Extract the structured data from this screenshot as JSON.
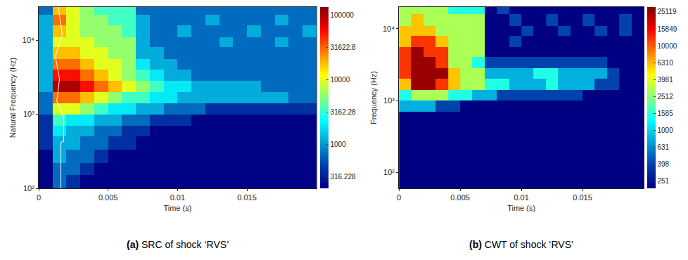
{
  "chart_data": [
    {
      "type": "heatmap",
      "caption": "(a) SRC of shock ‘RVS’",
      "x_label": "Time (s)",
      "y_label": "Natural Frequency (Hz)",
      "log": "y",
      "color": "jet",
      "xlim": [
        0,
        0.02
      ],
      "xticks": [
        0,
        0.005,
        0.01,
        0.015
      ],
      "ylim": [
        100,
        28000
      ],
      "yticks": [
        {
          "value": 100,
          "label": "10²"
        },
        {
          "value": 1000,
          "label": "10³"
        },
        {
          "value": 10000,
          "label": "10⁴"
        }
      ],
      "x_edges": [
        0,
        0.001,
        0.002,
        0.003,
        0.004,
        0.005,
        0.006,
        0.007,
        0.008,
        0.009,
        0.01,
        0.011,
        0.012,
        0.013,
        0.014,
        0.015,
        0.016,
        0.017,
        0.018,
        0.019,
        0.02
      ],
      "y_edges": [
        100,
        150,
        220,
        330,
        500,
        700,
        1000,
        1400,
        2000,
        2800,
        4000,
        5600,
        8000,
        11000,
        16000,
        22000,
        28000
      ],
      "cells": [
        [
          220,
          700,
          400,
          220,
          220,
          220,
          220,
          220,
          220,
          220,
          220,
          220,
          220,
          220,
          220,
          220,
          220,
          220,
          220,
          220
        ],
        [
          220,
          700,
          700,
          400,
          220,
          220,
          220,
          220,
          220,
          220,
          220,
          220,
          220,
          220,
          220,
          220,
          220,
          220,
          220,
          220
        ],
        [
          220,
          1200,
          700,
          700,
          400,
          220,
          220,
          220,
          220,
          220,
          220,
          220,
          220,
          220,
          220,
          220,
          220,
          220,
          220,
          220
        ],
        [
          400,
          1200,
          1200,
          700,
          700,
          400,
          400,
          220,
          220,
          220,
          220,
          220,
          220,
          220,
          220,
          220,
          220,
          220,
          220,
          220
        ],
        [
          400,
          2000,
          1200,
          1200,
          700,
          700,
          400,
          400,
          220,
          220,
          220,
          220,
          220,
          220,
          220,
          220,
          220,
          220,
          220,
          220
        ],
        [
          400,
          3500,
          2000,
          2000,
          1200,
          1200,
          700,
          700,
          400,
          400,
          400,
          220,
          220,
          220,
          220,
          220,
          220,
          220,
          220,
          220
        ],
        [
          700,
          10000,
          10000,
          6000,
          3500,
          2000,
          2000,
          1200,
          1200,
          700,
          700,
          700,
          400,
          400,
          400,
          400,
          400,
          400,
          400,
          400
        ],
        [
          700,
          30000,
          30000,
          18000,
          10000,
          6000,
          3500,
          3500,
          2000,
          2000,
          1200,
          1200,
          1200,
          1200,
          1200,
          1200,
          1200,
          1200,
          700,
          700
        ],
        [
          1200,
          100000,
          100000,
          55000,
          30000,
          18000,
          10000,
          6000,
          3500,
          2000,
          2000,
          1200,
          1200,
          1200,
          1200,
          1200,
          700,
          700,
          700,
          700
        ],
        [
          1200,
          55000,
          55000,
          30000,
          18000,
          10000,
          6000,
          3500,
          2000,
          1200,
          1200,
          700,
          700,
          700,
          700,
          700,
          700,
          700,
          700,
          700
        ],
        [
          1200,
          30000,
          30000,
          18000,
          10000,
          10000,
          6000,
          2000,
          1200,
          1200,
          700,
          700,
          700,
          700,
          700,
          700,
          700,
          700,
          700,
          700
        ],
        [
          1200,
          18000,
          18000,
          10000,
          10000,
          6000,
          6000,
          1200,
          1200,
          700,
          700,
          700,
          700,
          700,
          700,
          700,
          700,
          700,
          700,
          700
        ],
        [
          1200,
          10000,
          10000,
          10000,
          6000,
          6000,
          6000,
          1200,
          700,
          700,
          700,
          700,
          700,
          1200,
          700,
          700,
          700,
          1200,
          700,
          700
        ],
        [
          1200,
          18000,
          10000,
          6000,
          6000,
          6000,
          3500,
          1200,
          700,
          700,
          1200,
          700,
          700,
          700,
          700,
          1200,
          700,
          700,
          700,
          1200
        ],
        [
          1200,
          30000,
          10000,
          6000,
          6000,
          3500,
          3500,
          1200,
          700,
          700,
          700,
          700,
          1200,
          700,
          700,
          700,
          700,
          1200,
          700,
          700
        ],
        [
          700,
          18000,
          10000,
          6000,
          3500,
          3500,
          3500,
          700,
          700,
          700,
          700,
          700,
          700,
          700,
          700,
          700,
          700,
          700,
          700,
          700
        ]
      ],
      "colorbar": {
        "log": true,
        "range": [
          211,
          135000
        ],
        "ticks": [
          316.228,
          1000,
          3162.28,
          10000,
          31622.8,
          100000
        ]
      },
      "series": [
        {
          "type": "line",
          "color": "#ffffff",
          "x": [
            0.0016,
            0.0016,
            0.0018,
            0.0018,
            0.0013,
            0.0015,
            0.0012,
            0.0017,
            0.0014
          ],
          "y": [
            100,
            420,
            430,
            900,
            1500,
            3000,
            6000,
            12000,
            28000
          ]
        }
      ]
    },
    {
      "type": "heatmap",
      "caption": "(b) CWT of shock ‘RVS’",
      "x_label": "Time (s)",
      "y_label": "Frequency (Hz)",
      "log": "y",
      "color": "jet",
      "xlim": [
        0,
        0.02
      ],
      "xticks": [
        0,
        0.005,
        0.01,
        0.015
      ],
      "ylim": [
        60,
        20000
      ],
      "yticks": [
        {
          "value": 100,
          "label": "10²"
        },
        {
          "value": 1000,
          "label": "10³"
        },
        {
          "value": 10000,
          "label": "10⁴"
        }
      ],
      "x_edges": [
        0,
        0.001,
        0.002,
        0.003,
        0.004,
        0.005,
        0.006,
        0.007,
        0.008,
        0.009,
        0.01,
        0.011,
        0.012,
        0.013,
        0.014,
        0.015,
        0.016,
        0.017,
        0.018,
        0.019,
        0.02
      ],
      "y_edges": [
        60,
        100,
        150,
        220,
        330,
        500,
        700,
        1000,
        1400,
        2000,
        2800,
        4000,
        5600,
        8000,
        11000,
        16000,
        20000
      ],
      "cells": [
        [
          207,
          207,
          207,
          207,
          207,
          207,
          207,
          207,
          207,
          207,
          207,
          207,
          207,
          207,
          207,
          207,
          207,
          207,
          207,
          207
        ],
        [
          207,
          207,
          207,
          207,
          207,
          207,
          207,
          207,
          207,
          207,
          207,
          207,
          207,
          207,
          207,
          207,
          207,
          207,
          207,
          207
        ],
        [
          207,
          207,
          207,
          207,
          207,
          207,
          207,
          207,
          207,
          207,
          207,
          207,
          207,
          207,
          207,
          207,
          207,
          207,
          207,
          207
        ],
        [
          207,
          207,
          207,
          207,
          207,
          207,
          207,
          207,
          207,
          207,
          207,
          207,
          207,
          207,
          207,
          207,
          207,
          207,
          207,
          207
        ],
        [
          207,
          207,
          207,
          207,
          207,
          207,
          207,
          207,
          207,
          207,
          207,
          207,
          207,
          207,
          207,
          207,
          207,
          207,
          207,
          207
        ],
        [
          207,
          207,
          207,
          207,
          207,
          207,
          207,
          207,
          207,
          207,
          207,
          207,
          207,
          207,
          207,
          207,
          207,
          207,
          207,
          207
        ],
        [
          800,
          800,
          800,
          400,
          400,
          207,
          207,
          207,
          207,
          207,
          207,
          207,
          207,
          207,
          207,
          207,
          207,
          207,
          207,
          207
        ],
        [
          1500,
          3000,
          3000,
          3000,
          1500,
          1500,
          800,
          800,
          400,
          400,
          400,
          400,
          400,
          400,
          400,
          207,
          207,
          207,
          207,
          207
        ],
        [
          6000,
          25000,
          25000,
          12000,
          6000,
          3000,
          3000,
          1500,
          1500,
          800,
          800,
          800,
          1500,
          800,
          800,
          800,
          400,
          400,
          207,
          207
        ],
        [
          12000,
          25000,
          25000,
          25000,
          6000,
          3000,
          3000,
          800,
          800,
          800,
          800,
          1500,
          1500,
          800,
          800,
          800,
          800,
          400,
          207,
          207
        ],
        [
          12000,
          25000,
          25000,
          12000,
          3000,
          3000,
          1500,
          400,
          400,
          400,
          400,
          400,
          400,
          400,
          400,
          400,
          400,
          207,
          207,
          207
        ],
        [
          12000,
          25000,
          12000,
          12000,
          3000,
          3000,
          3000,
          207,
          207,
          207,
          207,
          207,
          207,
          207,
          207,
          207,
          207,
          207,
          207,
          207
        ],
        [
          6000,
          12000,
          12000,
          6000,
          3000,
          3000,
          3000,
          207,
          207,
          400,
          207,
          207,
          207,
          207,
          207,
          207,
          207,
          207,
          207,
          207
        ],
        [
          6000,
          6000,
          6000,
          3000,
          3000,
          3000,
          3000,
          207,
          207,
          207,
          400,
          207,
          207,
          400,
          207,
          207,
          400,
          207,
          400,
          207
        ],
        [
          3000,
          6000,
          3000,
          3000,
          3000,
          3000,
          3000,
          207,
          207,
          400,
          207,
          207,
          400,
          207,
          207,
          400,
          207,
          207,
          400,
          207
        ],
        [
          3000,
          3000,
          3000,
          3000,
          1500,
          1500,
          1500,
          207,
          400,
          207,
          207,
          207,
          207,
          207,
          207,
          207,
          207,
          207,
          207,
          207
        ]
      ],
      "colorbar": {
        "log": true,
        "range": [
          207,
          28700
        ],
        "ticks": [
          251,
          398,
          631,
          1000,
          1585,
          2512,
          3981,
          6310,
          10000,
          15849,
          25119
        ]
      }
    }
  ]
}
